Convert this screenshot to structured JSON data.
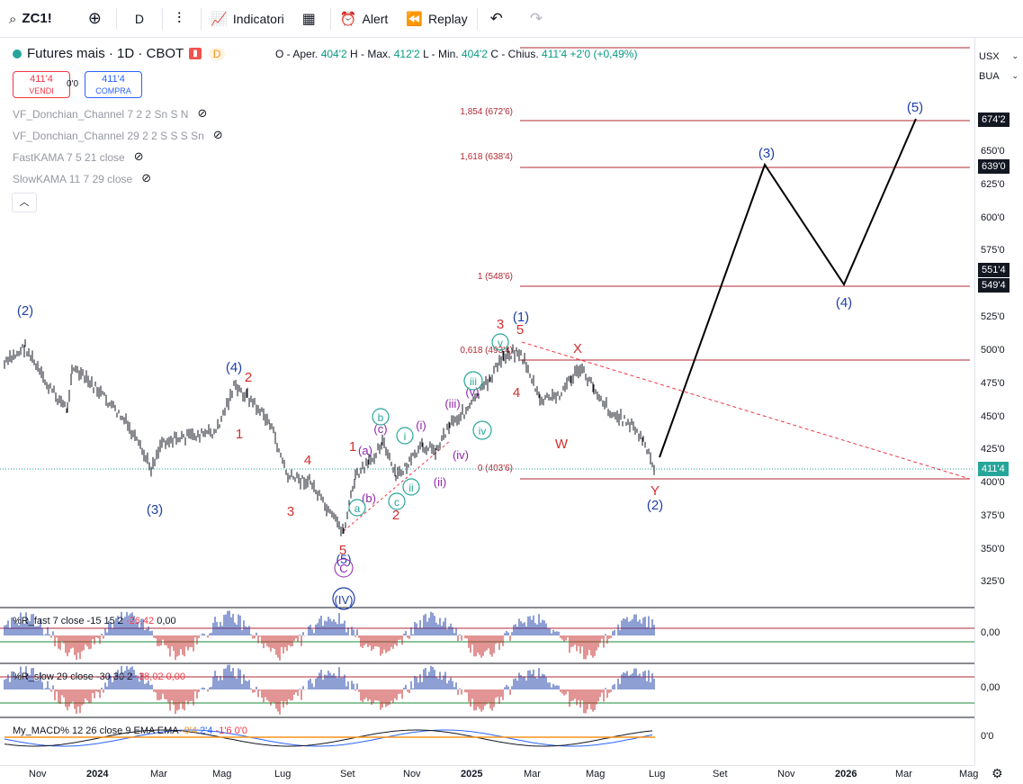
{
  "toolbar": {
    "symbol": "ZC1!",
    "interval": "D",
    "indicators_label": "Indicatori",
    "alert_label": "Alert",
    "replay_label": "Replay"
  },
  "legend": {
    "title": "Futures mais · 1D · CBOT",
    "badge": "D",
    "ohlc": {
      "open_label": "O - Aper.",
      "open": "404'2",
      "high_label": "H - Max.",
      "high": "412'2",
      "low_label": "L - Min.",
      "low": "404'2",
      "close_label": "C - Chius.",
      "close": "411'4",
      "change": "+2'0 (+0,49%)"
    },
    "sell": {
      "price": "411'4",
      "label": "VENDI"
    },
    "buy": {
      "price": "411'4",
      "label": "COMPRA"
    },
    "spread": "0'0",
    "indicators": [
      "VF_Donchian_Channel 7 2 2 Sn S N",
      "VF_Donchian_Channel 29 2 2 S S S Sn",
      "FastKAMA 7 5 21 close",
      "SlowKAMA 11 7 29 close"
    ]
  },
  "currency": "USX",
  "unit": "BUA",
  "price_axis": {
    "ticks": [
      "650'0",
      "625'0",
      "600'0",
      "575'0",
      "525'0",
      "500'0",
      "475'0",
      "450'0",
      "425'0",
      "400'0",
      "375'0",
      "350'0",
      "325'0"
    ],
    "tags": [
      {
        "value": "674'2",
        "kind": "level"
      },
      {
        "value": "639'0",
        "kind": "level"
      },
      {
        "value": "551'4",
        "kind": "level"
      },
      {
        "value": "549'4",
        "kind": "level"
      },
      {
        "value": "411'4",
        "kind": "current"
      }
    ],
    "sub_ticks": [
      "0,00",
      "0,00",
      "0'0"
    ]
  },
  "fib_levels": [
    {
      "label": "1,854 (672'6)"
    },
    {
      "label": "1,618 (638'4)"
    },
    {
      "label": "1 (548'6)"
    },
    {
      "label": "0,618 (493'4)"
    },
    {
      "label": "0 (403'6)"
    }
  ],
  "time_axis": [
    {
      "label": "Nov",
      "bold": false
    },
    {
      "label": "2024",
      "bold": true
    },
    {
      "label": "Mar",
      "bold": false
    },
    {
      "label": "Mag",
      "bold": false
    },
    {
      "label": "Lug",
      "bold": false
    },
    {
      "label": "Set",
      "bold": false
    },
    {
      "label": "Nov",
      "bold": false
    },
    {
      "label": "2025",
      "bold": true
    },
    {
      "label": "Mar",
      "bold": false
    },
    {
      "label": "Mag",
      "bold": false
    },
    {
      "label": "Lug",
      "bold": false
    },
    {
      "label": "Set",
      "bold": false
    },
    {
      "label": "Nov",
      "bold": false
    },
    {
      "label": "2026",
      "bold": true
    },
    {
      "label": "Mar",
      "bold": false
    },
    {
      "label": "Mag",
      "bold": false
    }
  ],
  "wave_labels": {
    "major": [
      "(2)",
      "(3)",
      "(4)",
      "(1)",
      "(2)",
      "(3)",
      "(4)",
      "(5)",
      "(5)",
      "(IV)"
    ],
    "minor_red": [
      "2",
      "1",
      "4",
      "3",
      "5",
      "1",
      "2",
      "3",
      "5",
      "4",
      "X",
      "W",
      "Y"
    ],
    "minor_purple": [
      "(a)",
      "(b)",
      "(c)",
      "(i)",
      "(ii)",
      "(iii)",
      "(iv)",
      "(v)"
    ],
    "minor_green": [
      "a",
      "b",
      "c",
      "i",
      "ii",
      "iii",
      "iv",
      "v"
    ]
  },
  "subpanes": [
    {
      "name": "%R_fast",
      "text": "%R_fast 7 close -15 15 2",
      "v1": "-26,42",
      "v2": "0,00"
    },
    {
      "name": "%R_slow",
      "text": "%R_slow 29 close -30 30 2",
      "v1": "-38,02",
      "v2": "0,00"
    },
    {
      "name": "My_MACD",
      "text": "My_MACD% 12 26 close 9 EMA EMA",
      "v1": "-0'4",
      "v2": "2'4",
      "v3": "-1'6",
      "v4": "0'0"
    }
  ]
}
